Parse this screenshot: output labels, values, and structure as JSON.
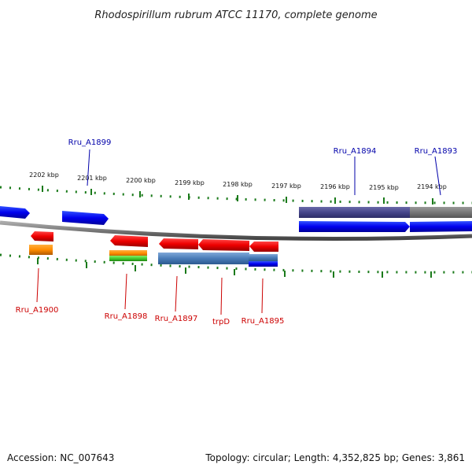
{
  "title": "Rhodospirillum rubrum ATCC 11170, complete genome",
  "footer": {
    "accession": "Accession: NC_007643",
    "summary": "Topology: circular; Length: 4,352,825 bp; Genes: 3,861"
  },
  "ruler": {
    "ticks": [
      "2202 kbp",
      "2201 kbp",
      "2200 kbp",
      "2199 kbp",
      "2198 kbp",
      "2197 kbp",
      "2196 kbp",
      "2195 kbp",
      "2194 kbp"
    ]
  },
  "genes": {
    "top": [
      "Rru_A1899",
      "Rru_A1894",
      "Rru_A1893"
    ],
    "bottom": [
      "Rru_A1900",
      "Rru_A1898",
      "Rru_A1897",
      "trpD",
      "Rru_A1895"
    ]
  },
  "colors": {
    "forward_cds": "#0000ee",
    "reverse_cds": "#ee0000",
    "label_top": "#0000aa",
    "label_bottom": "#cc0000",
    "backbone": "#777777",
    "tick": "#1a7a1a"
  }
}
